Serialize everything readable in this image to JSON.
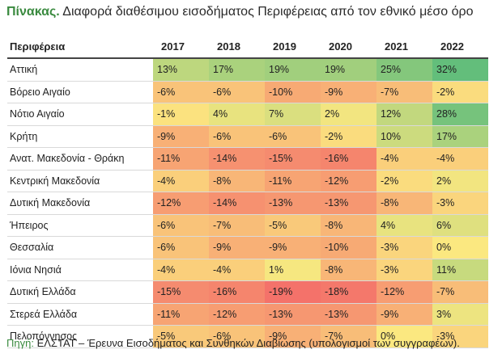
{
  "title": {
    "lead": "Πίνακας.",
    "text": "Διαφορά διαθέσιμου εισοδήματος Περιφέρειας από τον εθνικό μέσο όρο"
  },
  "table": {
    "headers": [
      "Περιφέρεια",
      "2017",
      "2018",
      "2019",
      "2020",
      "2021",
      "2022"
    ],
    "rows": [
      {
        "region": "Αττική",
        "values": [
          13,
          17,
          19,
          19,
          25,
          32
        ],
        "labels": [
          "13%",
          "17%",
          "19%",
          "19%",
          "25%",
          "32%"
        ]
      },
      {
        "region": "Βόρειο Αιγαίο",
        "values": [
          -6,
          -6,
          -10,
          -9,
          -7,
          -2
        ],
        "labels": [
          "-6%",
          "-6%",
          "-10%",
          "-9%",
          "-7%",
          "-2%"
        ]
      },
      {
        "region": "Νότιο Αιγαίο",
        "values": [
          -1,
          4,
          7,
          2,
          12,
          28
        ],
        "labels": [
          "-1%",
          "4%",
          "7%",
          "2%",
          "12%",
          "28%"
        ]
      },
      {
        "region": "Κρήτη",
        "values": [
          -9,
          -6,
          -6,
          -2,
          10,
          17
        ],
        "labels": [
          "-9%",
          "-6%",
          "-6%",
          "-2%",
          "10%",
          "17%"
        ]
      },
      {
        "region": "Ανατ. Μακεδονία - Θράκη",
        "values": [
          -11,
          -14,
          -15,
          -16,
          -4,
          -4
        ],
        "labels": [
          "-11%",
          "-14%",
          "-15%",
          "-16%",
          "-4%",
          "-4%"
        ]
      },
      {
        "region": "Κεντρική Μακεδονία",
        "values": [
          -4,
          -8,
          -11,
          -12,
          -2,
          2
        ],
        "labels": [
          "-4%",
          "-8%",
          "-11%",
          "-12%",
          "-2%",
          "2%"
        ]
      },
      {
        "region": "Δυτική Μακεδονία",
        "values": [
          -12,
          -14,
          -13,
          -13,
          -8,
          -3
        ],
        "labels": [
          "-12%",
          "-14%",
          "-13%",
          "-13%",
          "-8%",
          "-3%"
        ]
      },
      {
        "region": "Ήπειρος",
        "values": [
          -6,
          -7,
          -5,
          -8,
          4,
          6
        ],
        "labels": [
          "-6%",
          "-7%",
          "-5%",
          "-8%",
          "4%",
          "6%"
        ]
      },
      {
        "region": "Θεσσαλία",
        "values": [
          -6,
          -9,
          -9,
          -10,
          -3,
          0
        ],
        "labels": [
          "-6%",
          "-9%",
          "-9%",
          "-10%",
          "-3%",
          "0%"
        ]
      },
      {
        "region": "Ιόνια Νησιά",
        "values": [
          -4,
          -4,
          1,
          -8,
          -3,
          11
        ],
        "labels": [
          "-4%",
          "-4%",
          "1%",
          "-8%",
          "-3%",
          "11%"
        ]
      },
      {
        "region": "Δυτική Ελλάδα",
        "values": [
          -15,
          -16,
          -19,
          -18,
          -12,
          -7
        ],
        "labels": [
          "-15%",
          "-16%",
          "-19%",
          "-18%",
          "-12%",
          "-7%"
        ]
      },
      {
        "region": "Στερεά Ελλάδα",
        "values": [
          -11,
          -12,
          -13,
          -13,
          -9,
          3
        ],
        "labels": [
          "-11%",
          "-12%",
          "-13%",
          "-13%",
          "-9%",
          "3%"
        ]
      },
      {
        "region": "Πελοπόννησος",
        "values": [
          -5,
          -6,
          -9,
          -7,
          0,
          -3
        ],
        "labels": [
          "-5%",
          "-6%",
          "-9%",
          "-7%",
          "0%",
          "-3%"
        ]
      }
    ]
  },
  "heat_colors": {
    "low": "#f4726a",
    "mid": "#fbe880",
    "high": "#63be7b"
  },
  "source": {
    "label": "Πηγή:",
    "text": " ΕΛΣΤΑΤ – Έρευνα Εισοδήματος και Συνθηκών Διαβίωσης (υπολογισμοί των συγγραφέων)."
  }
}
